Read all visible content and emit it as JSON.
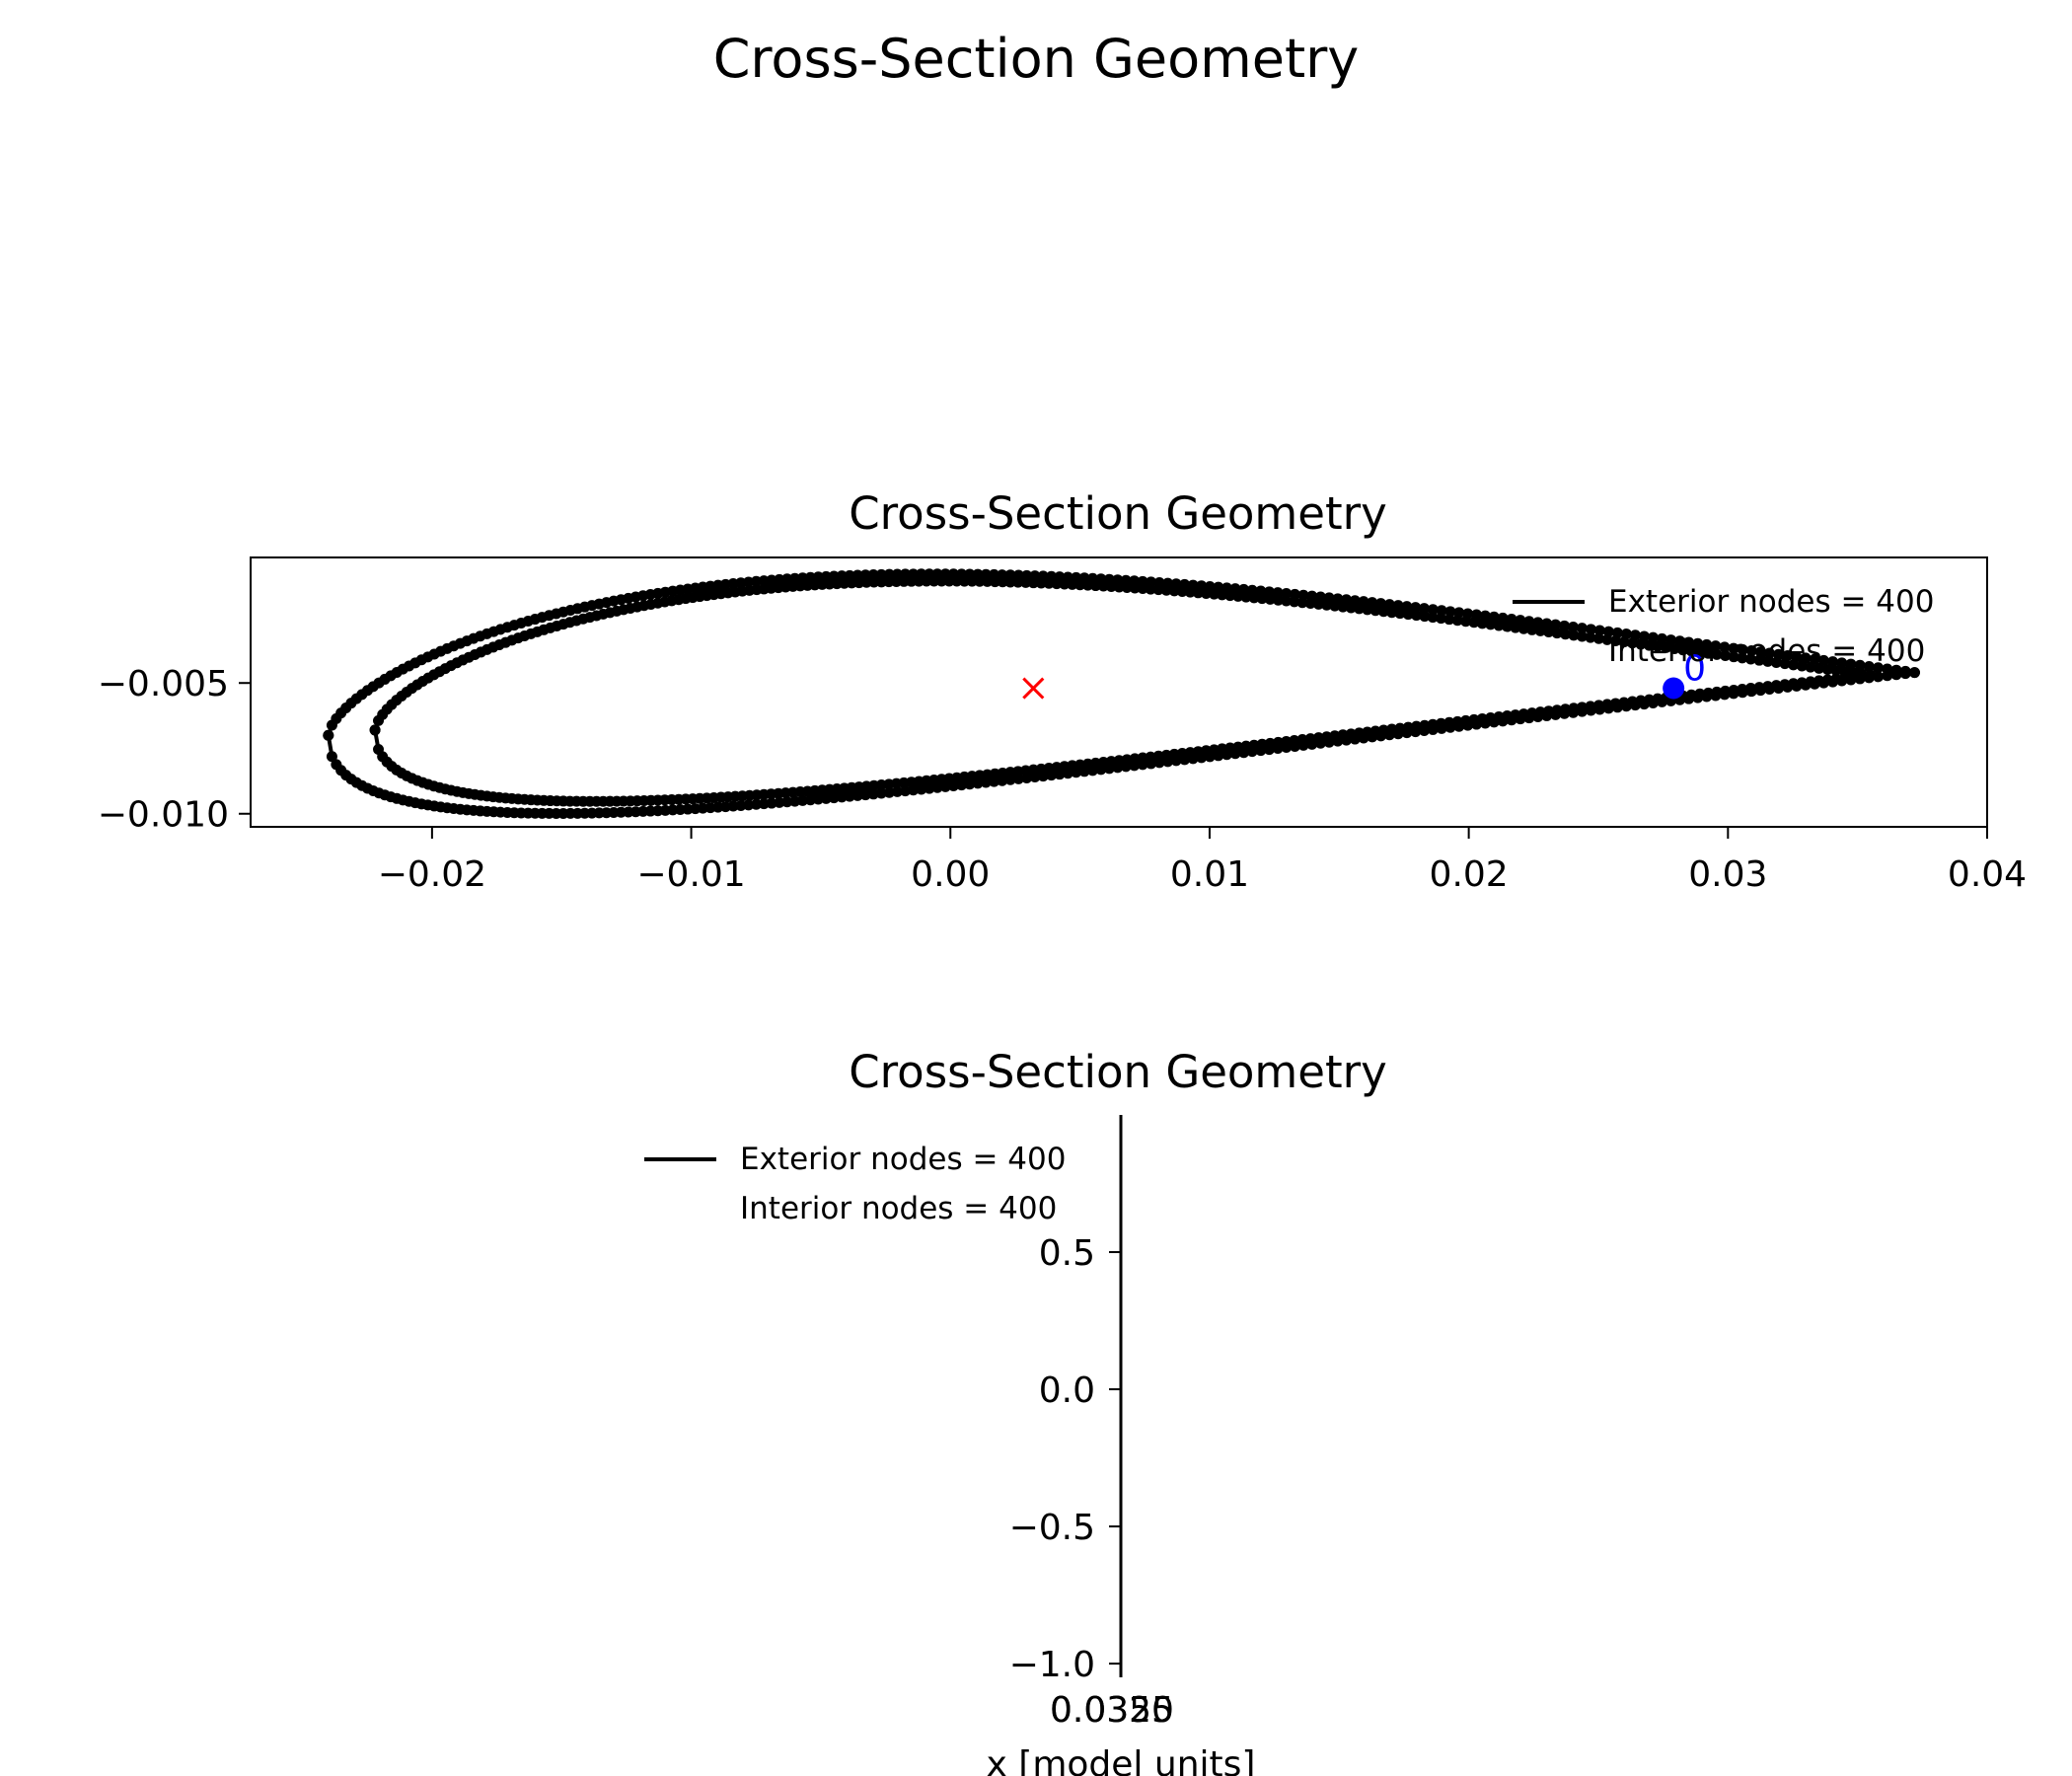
{
  "figure": {
    "suptitle": "Cross-Section Geometry"
  },
  "colors": {
    "nodes": "#000000",
    "centroid": "#ff0000",
    "reference": "#0000ff"
  },
  "chart_data": [
    {
      "type": "scatter",
      "title": "Cross-Section Geometry",
      "xlim": [
        -0.027,
        0.04
      ],
      "ylim": [
        -0.0105,
        -0.0002
      ],
      "x_ticks": [
        {
          "value": -0.02,
          "label": "−0.02"
        },
        {
          "value": -0.01,
          "label": "−0.01"
        },
        {
          "value": 0.0,
          "label": "0.00"
        },
        {
          "value": 0.01,
          "label": "0.01"
        },
        {
          "value": 0.02,
          "label": "0.02"
        },
        {
          "value": 0.03,
          "label": "0.03"
        },
        {
          "value": 0.04,
          "label": "0.04"
        }
      ],
      "y_ticks": [
        {
          "value": -0.005,
          "label": "−0.005"
        },
        {
          "value": -0.01,
          "label": "−0.010"
        }
      ],
      "legend": {
        "placement": "top-right",
        "entries": [
          "Exterior nodes = 400",
          "Interior nodes = 400"
        ]
      },
      "series": [
        {
          "name": "Exterior nodes = 400",
          "shape": "airfoil",
          "leading_edge": [
            -0.024,
            -0.007
          ],
          "trailing_edge": [
            0.0372,
            -0.0046
          ],
          "upper_max_y": -0.0007,
          "upper_max_x": 0.001,
          "lower_min_y": -0.0098,
          "lower_min_x": -0.009
        },
        {
          "name": "Interior nodes = 400",
          "shape": "airfoil",
          "leading_edge": [
            -0.0222,
            -0.0068
          ],
          "trailing_edge": [
            0.0355,
            -0.0047
          ],
          "upper_max_y": -0.001,
          "upper_max_x": 0.001,
          "lower_min_y": -0.0094,
          "lower_min_x": -0.009
        }
      ],
      "centroid": {
        "x": 0.0032,
        "y": -0.0052
      },
      "reference_point": {
        "x": 0.0279,
        "y": -0.0052,
        "label": "0"
      }
    },
    {
      "type": "line",
      "title": "Cross-Section Geometry",
      "xlabel": "x [model units]",
      "ylim": [
        -1.05,
        1.0
      ],
      "y_ticks": [
        {
          "value": 0.5,
          "label": "0.5"
        },
        {
          "value": 0.0,
          "label": "0.0"
        },
        {
          "value": -0.5,
          "label": "−0.5"
        },
        {
          "value": -1.0,
          "label": "−1.0"
        }
      ],
      "x_tick_labels_overlapping": [
        "0.0325",
        "0.0350"
      ],
      "legend": {
        "placement": "upper-left",
        "entries": [
          "Exterior nodes = 400",
          "Interior nodes = 400"
        ]
      }
    }
  ]
}
